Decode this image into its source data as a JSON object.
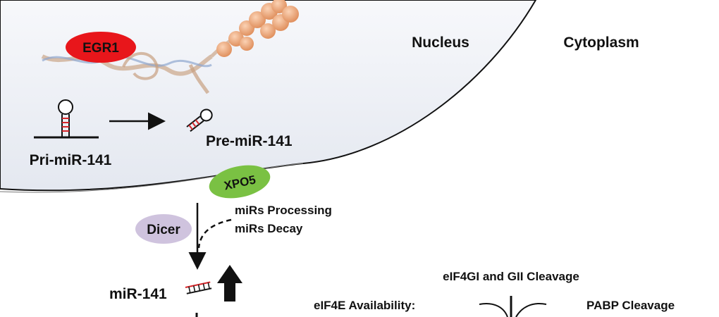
{
  "regions": {
    "nucleus": "Nucleus",
    "cytoplasm": "Cytoplasm"
  },
  "proteins": {
    "egr1": "EGR1",
    "xpo5": "XPO5",
    "dicer": "Dicer"
  },
  "rna": {
    "pri": "Pri-miR-141",
    "pre": "Pre-miR-141",
    "mature": "miR-141"
  },
  "processes": {
    "processing": "miRs Processing",
    "decay": "miRs Decay",
    "eif4g": "eIF4GI and GII Cleavage",
    "eif4e": "eIF4E Availability:",
    "pabp": "PABP Cleavage"
  },
  "colors": {
    "egr1": "#e8161b",
    "xpo5": "#7ac143",
    "dicer": "#cfc3de",
    "nucleus_fill": "#eef1f6",
    "stem_red": "#d7262a"
  }
}
